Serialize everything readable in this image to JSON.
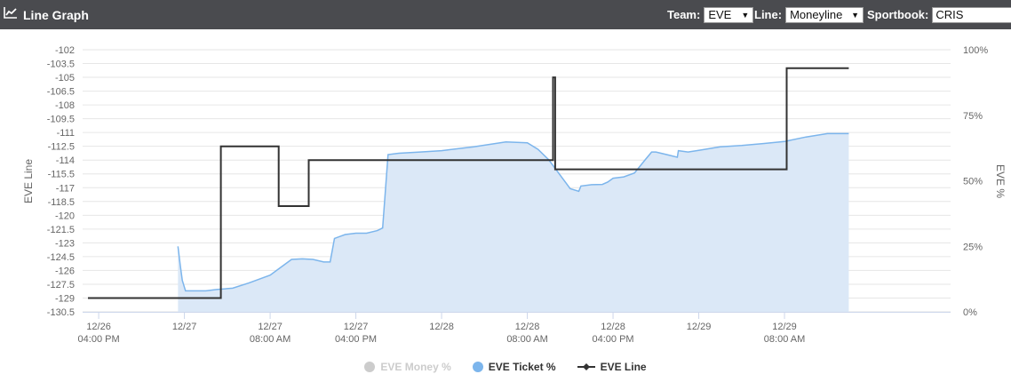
{
  "header": {
    "title": "Line Graph",
    "team_label": "Team:",
    "team_value": "EVE",
    "line_label": "Line:",
    "line_value": "Moneyline",
    "sportsbook_label": "Sportbook:",
    "sportsbook_value": "CRIS"
  },
  "colors": {
    "header_bg": "#4a4b4f",
    "line": "#333333",
    "ticket": "#7cb5ec",
    "ticket_fill": "#dbe8f7",
    "money_hidden": "#cccccc"
  },
  "chart_data": {
    "type": "line",
    "y_left_label": "EVE Line",
    "y_right_label": "EVE %",
    "y_left_range": [
      -130.5,
      -102
    ],
    "y_left_ticks": [
      "-102",
      "-103.5",
      "-105",
      "-106.5",
      "-108",
      "-109.5",
      "-111",
      "-112.5",
      "-114",
      "-115.5",
      "-117",
      "-118.5",
      "-120",
      "-121.5",
      "-123",
      "-124.5",
      "-126",
      "-127.5",
      "-129",
      "-130.5"
    ],
    "y_right_range": [
      0,
      100
    ],
    "y_right_ticks": [
      "100%",
      "75%",
      "50%",
      "25%",
      "0%"
    ],
    "x_range": [
      -1.5,
      79.5
    ],
    "x_ticks": [
      {
        "x": 0,
        "line1": "12/26",
        "line2": "04:00 PM"
      },
      {
        "x": 8,
        "line1": "12/27",
        "line2": ""
      },
      {
        "x": 16,
        "line1": "12/27",
        "line2": "08:00 AM"
      },
      {
        "x": 24,
        "line1": "12/27",
        "line2": "04:00 PM"
      },
      {
        "x": 32,
        "line1": "12/28",
        "line2": ""
      },
      {
        "x": 40,
        "line1": "12/28",
        "line2": "08:00 AM"
      },
      {
        "x": 48,
        "line1": "12/28",
        "line2": "04:00 PM"
      },
      {
        "x": 56,
        "line1": "12/29",
        "line2": ""
      },
      {
        "x": 64,
        "line1": "12/29",
        "line2": "08:00 AM"
      }
    ],
    "grid": true,
    "legend_position": "bottom",
    "series": [
      {
        "name": "EVE Money %",
        "visible": false,
        "points": []
      },
      {
        "name": "EVE Ticket %",
        "type": "area",
        "axis": "right",
        "points": [
          [
            7.4,
            25
          ],
          [
            7.6,
            18
          ],
          [
            7.8,
            12
          ],
          [
            8.1,
            8
          ],
          [
            9,
            8
          ],
          [
            10,
            8
          ],
          [
            11,
            8.5
          ],
          [
            12.5,
            9
          ],
          [
            14,
            11
          ],
          [
            16,
            14
          ],
          [
            17,
            17
          ],
          [
            18,
            20
          ],
          [
            19,
            20.2
          ],
          [
            20,
            20
          ],
          [
            21,
            19
          ],
          [
            21.6,
            19
          ],
          [
            22,
            28
          ],
          [
            23,
            29.5
          ],
          [
            24,
            30
          ],
          [
            25,
            30
          ],
          [
            26,
            31
          ],
          [
            26.5,
            32
          ],
          [
            27,
            60
          ],
          [
            28,
            60.5
          ],
          [
            30,
            61
          ],
          [
            32,
            61.5
          ],
          [
            35,
            63
          ],
          [
            38,
            64.8
          ],
          [
            40,
            64.5
          ],
          [
            41,
            62
          ],
          [
            42,
            58
          ],
          [
            44,
            47
          ],
          [
            44.8,
            46
          ],
          [
            45,
            48
          ],
          [
            46,
            48.5
          ],
          [
            47,
            48.6
          ],
          [
            47.5,
            49.5
          ],
          [
            48,
            51
          ],
          [
            49,
            51.5
          ],
          [
            50,
            53
          ],
          [
            51,
            58
          ],
          [
            51.6,
            61
          ],
          [
            52,
            61
          ],
          [
            53,
            60
          ],
          [
            54,
            59
          ],
          [
            54.1,
            61.5
          ],
          [
            55,
            61
          ],
          [
            56,
            61.6
          ],
          [
            58,
            63
          ],
          [
            60,
            63.5
          ],
          [
            62,
            64.2
          ],
          [
            64,
            65
          ],
          [
            66,
            66.7
          ],
          [
            68,
            68
          ],
          [
            70,
            68
          ]
        ]
      },
      {
        "name": "EVE Line",
        "type": "step",
        "axis": "left",
        "points": [
          [
            -1,
            -129
          ],
          [
            11.4,
            -129
          ],
          [
            11.4,
            -112.5
          ],
          [
            16.8,
            -112.5
          ],
          [
            16.8,
            -119
          ],
          [
            19.6,
            -119
          ],
          [
            19.6,
            -114
          ],
          [
            42.4,
            -114
          ],
          [
            42.4,
            -105
          ],
          [
            42.6,
            -105
          ],
          [
            42.6,
            -115
          ],
          [
            64.2,
            -115
          ],
          [
            64.2,
            -104
          ],
          [
            70,
            -104
          ]
        ]
      }
    ]
  }
}
